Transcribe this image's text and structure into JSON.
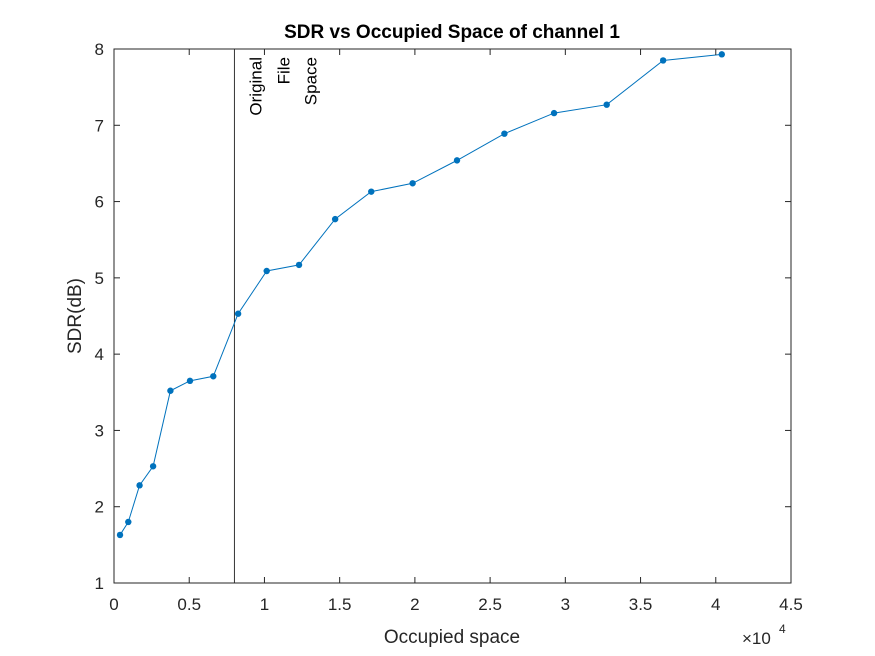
{
  "chart_data": {
    "type": "line",
    "title": "SDR vs Occupied Space of channel 1",
    "xlabel": "Occupied space",
    "ylabel": "SDR(dB)",
    "xlim": [
      0,
      45000
    ],
    "ylim": [
      1,
      8
    ],
    "x_ticks": [
      0,
      5000,
      10000,
      15000,
      20000,
      25000,
      30000,
      35000,
      40000,
      45000
    ],
    "x_tick_labels": [
      "0",
      "0.5",
      "1",
      "1.5",
      "2",
      "2.5",
      "3",
      "3.5",
      "4",
      "4.5"
    ],
    "x_exponent_label": "×10",
    "x_exponent_power": "4",
    "y_ticks": [
      1,
      2,
      3,
      4,
      5,
      6,
      7,
      8
    ],
    "y_tick_labels": [
      "1",
      "2",
      "3",
      "4",
      "5",
      "6",
      "7",
      "8"
    ],
    "grid": false,
    "series": [
      {
        "color": "#0072BD",
        "x": [
          400,
          950,
          1700,
          2600,
          3750,
          5050,
          6600,
          8250,
          10150,
          12300,
          14700,
          17100,
          19850,
          22800,
          25950,
          29250,
          32750,
          36500,
          40400
        ],
        "y": [
          1.63,
          1.8,
          2.28,
          2.53,
          3.52,
          3.65,
          3.71,
          4.53,
          5.09,
          5.17,
          5.77,
          6.13,
          6.24,
          6.54,
          6.89,
          7.16,
          7.27,
          7.85,
          7.93
        ]
      }
    ],
    "reference_line": {
      "x": 8000,
      "color": "#000000",
      "label_lines": [
        "Original",
        "File",
        "Space"
      ]
    }
  }
}
